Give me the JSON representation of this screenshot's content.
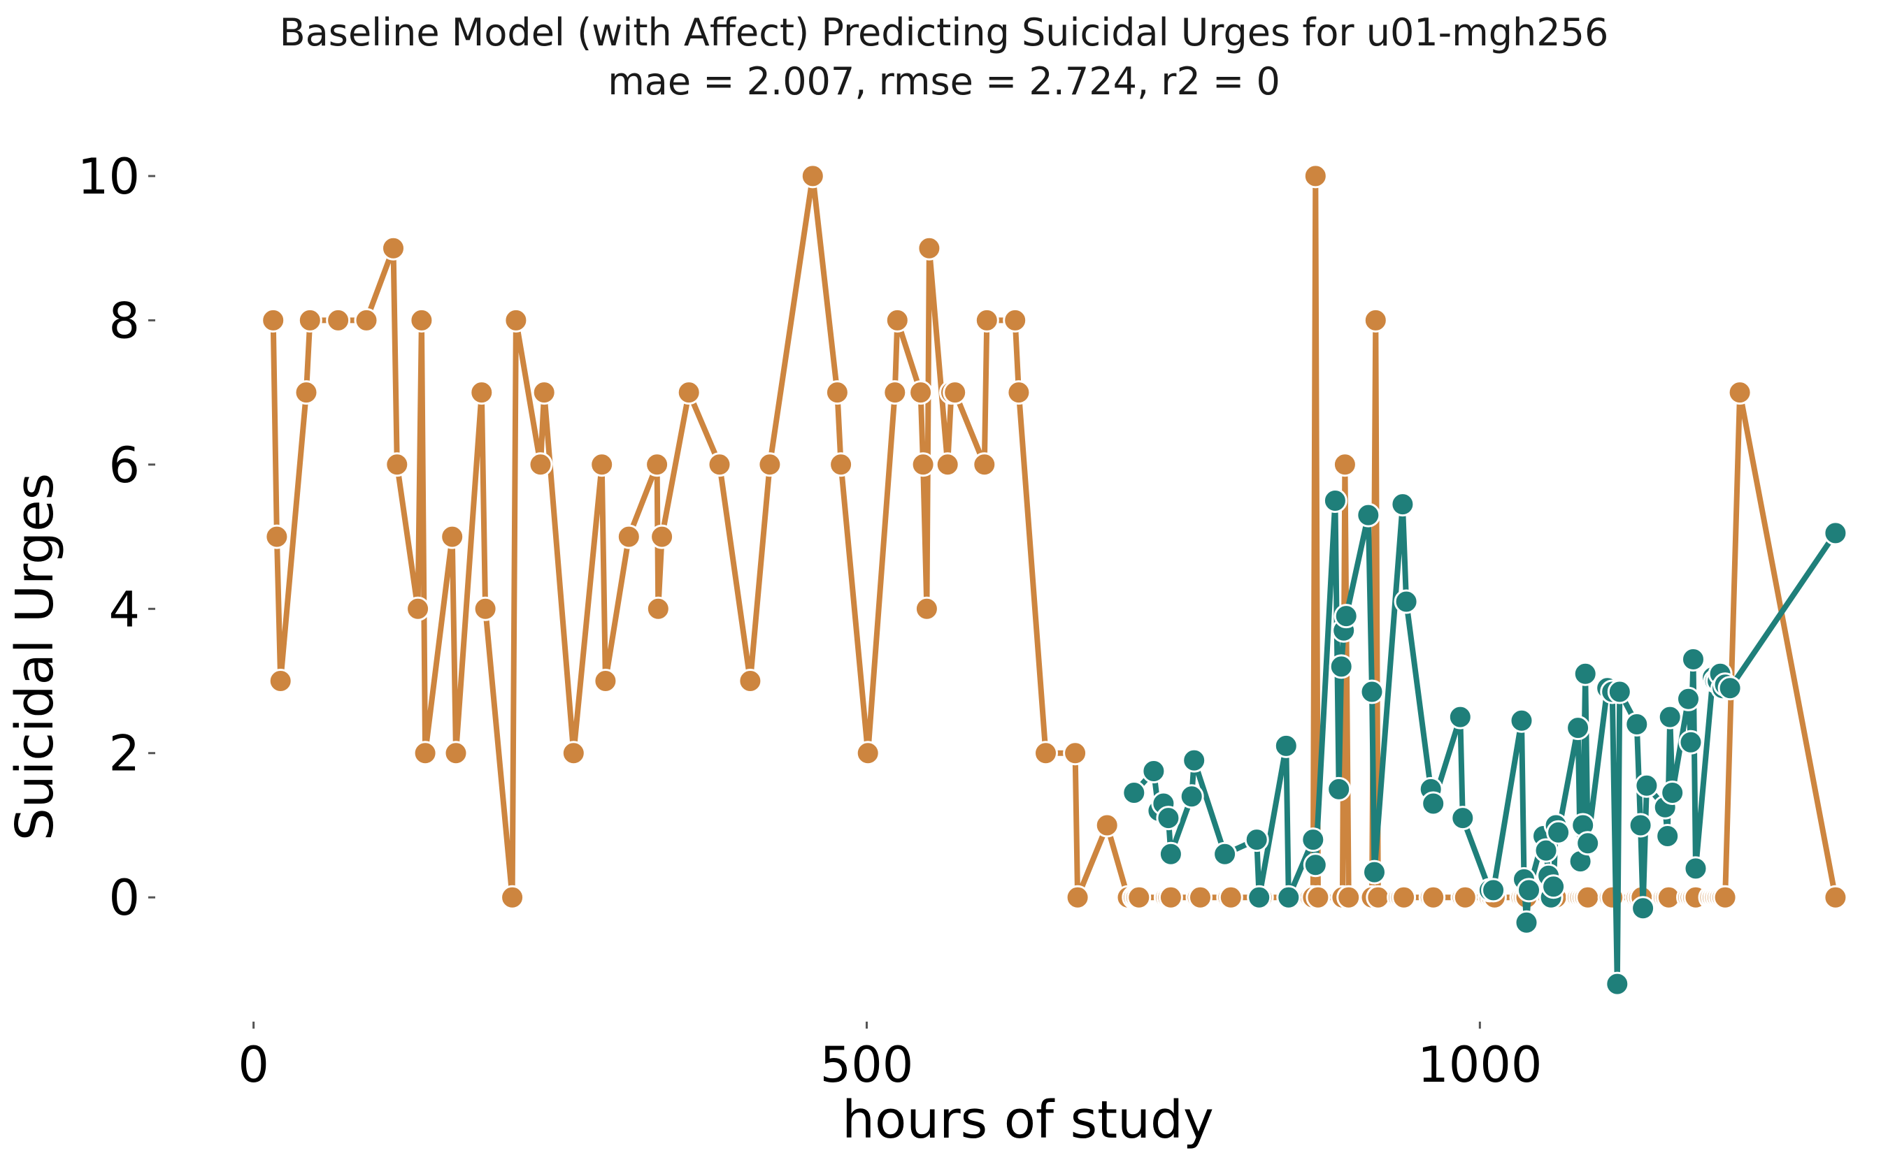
{
  "chart_data": {
    "type": "line",
    "title": "Baseline Model (with Affect) Predicting Suicidal Urges for u01-mgh256",
    "subtitle": "mae = 2.007, rmse = 2.724, r2 = 0",
    "xlabel": "hours of study",
    "ylabel": "Suicidal Urges",
    "xlim": [
      -30,
      1310
    ],
    "ylim": [
      -1.8,
      10.6
    ],
    "xticks": [
      0,
      500,
      1000
    ],
    "yticks": [
      0,
      2,
      4,
      6,
      8,
      10
    ],
    "grid": false,
    "legend": "none",
    "series": [
      {
        "color": "#cd853f",
        "x": [
          16,
          19,
          22,
          43,
          46,
          69,
          92,
          114,
          117,
          134,
          137,
          140,
          162,
          165,
          186,
          189,
          211,
          214,
          234,
          237,
          261,
          284,
          287,
          306,
          329,
          330,
          333,
          355,
          380,
          405,
          421,
          456,
          476,
          479,
          501,
          523,
          525,
          544,
          546,
          549,
          551,
          566,
          569,
          572,
          596,
          598,
          621,
          624,
          646,
          670,
          672,
          696,
          713,
          718,
          720,
          722,
          744,
          746,
          748,
          770,
          772,
          795,
          797,
          820,
          822,
          844,
          846,
          862,
          864,
          866,
          868,
          888,
          890,
          893,
          912,
          915,
          917,
          934,
          936,
          938,
          960,
          962,
          986,
          988,
          1008,
          1010,
          1012,
          1034,
          1036,
          1038,
          1058,
          1060,
          1062,
          1080,
          1082,
          1084,
          1086,
          1088,
          1106,
          1108,
          1128,
          1130,
          1132,
          1150,
          1152,
          1154,
          1170,
          1172,
          1174,
          1176,
          1188,
          1190,
          1192,
          1194,
          1196,
          1198,
          1200,
          1212,
          1290
        ],
        "values": [
          8,
          5,
          3,
          7,
          8,
          8,
          8,
          9,
          6,
          4,
          8,
          2,
          5,
          2,
          7,
          4,
          0,
          8,
          6,
          7,
          2,
          6,
          3,
          5,
          6,
          4,
          5,
          7,
          6,
          3,
          6,
          10,
          7,
          6,
          2,
          7,
          8,
          7,
          6,
          4,
          9,
          6,
          7,
          7,
          6,
          8,
          8,
          7,
          2,
          2,
          0,
          1,
          0,
          0,
          0,
          0,
          0,
          0,
          0,
          0,
          0,
          0,
          0,
          0,
          0,
          0,
          0,
          0,
          0,
          10,
          0,
          0,
          6,
          0,
          0,
          8,
          0,
          0,
          0,
          0,
          0,
          0,
          0,
          0,
          0,
          0,
          0,
          0,
          0,
          0,
          0,
          0,
          0,
          0,
          0,
          0,
          0,
          0,
          0,
          0,
          0,
          0,
          0,
          0,
          0,
          0,
          0,
          0,
          0,
          0,
          0,
          0,
          0,
          0,
          0,
          0,
          0,
          7,
          0
        ]
      },
      {
        "color": "#1f7f7a",
        "x": [
          718,
          734,
          738,
          742,
          746,
          748,
          765,
          767,
          792,
          818,
          820,
          842,
          844,
          864,
          866,
          882,
          885,
          887,
          889,
          891,
          909,
          912,
          914,
          937,
          940,
          960,
          962,
          984,
          986,
          1008,
          1011,
          1034,
          1036,
          1038,
          1040,
          1052,
          1054,
          1056,
          1058,
          1060,
          1062,
          1064,
          1080,
          1082,
          1084,
          1086,
          1088,
          1104,
          1108,
          1112,
          1114,
          1128,
          1131,
          1133,
          1136,
          1151,
          1153,
          1155,
          1157,
          1170,
          1172,
          1174,
          1176,
          1190,
          1192,
          1194,
          1196,
          1198,
          1200,
          1204,
          1290
        ],
        "values": [
          1.45,
          1.75,
          1.2,
          1.3,
          1.1,
          0.6,
          1.4,
          1.9,
          0.6,
          0.8,
          0.0,
          2.1,
          0.0,
          0.8,
          0.45,
          5.5,
          1.5,
          3.2,
          3.7,
          3.9,
          5.3,
          2.85,
          0.35,
          5.45,
          4.1,
          1.5,
          1.3,
          2.5,
          1.1,
          0.1,
          0.1,
          2.45,
          0.25,
          -0.35,
          0.1,
          0.85,
          0.65,
          0.3,
          0.0,
          0.15,
          1.0,
          0.9,
          2.35,
          0.5,
          1.0,
          3.1,
          0.75,
          2.9,
          2.85,
          -1.2,
          2.85,
          2.4,
          1.0,
          -0.15,
          1.55,
          1.25,
          0.85,
          2.5,
          1.45,
          2.75,
          2.15,
          3.3,
          0.4,
          3.05,
          3.0,
          3.0,
          3.1,
          2.9,
          2.95,
          2.9,
          5.05
        ]
      }
    ]
  }
}
